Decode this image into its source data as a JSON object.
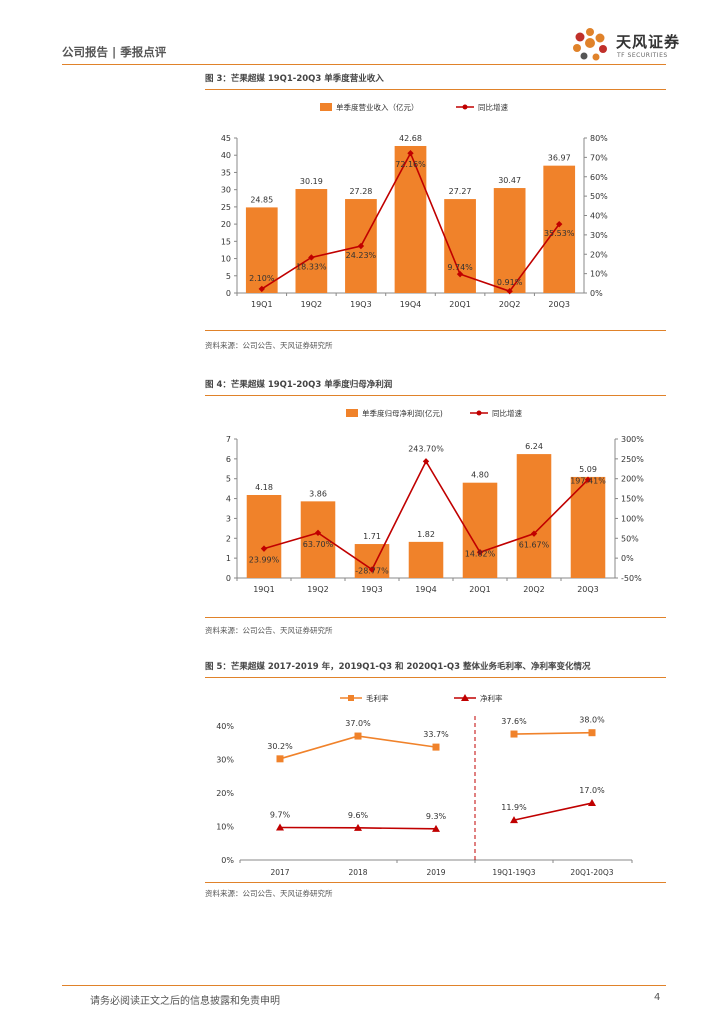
{
  "header": {
    "title": "公司报告 | 季报点评",
    "logo_cn": "天风证券",
    "logo_en": "TF SECURITIES"
  },
  "footer": {
    "disclaimer": "请务必阅读正文之后的信息披露和免责申明",
    "page": "4"
  },
  "colors": {
    "accent": "#e0822a",
    "bar": "#f0822a",
    "line": "#c00000"
  },
  "figures": [
    {
      "title": "图 3：芒果超媒 19Q1-20Q3 单季度营业收入",
      "source": "资料来源：公司公告、天风证券研究所"
    },
    {
      "title": "图 4：芒果超媒 19Q1-20Q3 单季度归母净利润",
      "source": "资料来源：公司公告、天风证券研究所"
    },
    {
      "title": "图 5：芒果超媒 2017-2019 年，2019Q1-Q3 和 2020Q1-Q3 整体业务毛利率、净利率变化情况",
      "source": "资料来源：公司公告、天风证券研究所"
    }
  ],
  "chart_data": [
    {
      "type": "bar",
      "title": "图 3：芒果超媒 19Q1-20Q3 单季度营业收入",
      "categories": [
        "19Q1",
        "19Q2",
        "19Q3",
        "19Q4",
        "20Q1",
        "20Q2",
        "20Q3"
      ],
      "series": [
        {
          "name": "单季度营业收入（亿元）",
          "kind": "bar",
          "axis": "left",
          "values": [
            24.85,
            30.19,
            27.28,
            42.68,
            27.27,
            30.47,
            36.97
          ],
          "labels": [
            "24.85",
            "30.19",
            "27.28",
            "42.68",
            "27.27",
            "30.47",
            "36.97"
          ]
        },
        {
          "name": "同比增速",
          "kind": "line",
          "axis": "right",
          "values": [
            2.1,
            18.33,
            24.23,
            72.16,
            9.74,
            0.91,
            35.53
          ],
          "labels": [
            "2.10%",
            "18.33%",
            "24.23%",
            "72.16%",
            "9.74%",
            "0.91%",
            "35.53%"
          ]
        }
      ],
      "ylim": [
        0,
        45
      ],
      "yticks": [
        "0",
        "5",
        "10",
        "15",
        "20",
        "25",
        "30",
        "35",
        "40",
        "45"
      ],
      "y2lim": [
        0,
        80
      ],
      "y2ticks": [
        "0%",
        "10%",
        "20%",
        "30%",
        "40%",
        "50%",
        "60%",
        "70%",
        "80%"
      ],
      "legend": "top-center"
    },
    {
      "type": "bar",
      "title": "图 4：芒果超媒 19Q1-20Q3 单季度归母净利润",
      "categories": [
        "19Q1",
        "19Q2",
        "19Q3",
        "19Q4",
        "20Q1",
        "20Q2",
        "20Q3"
      ],
      "series": [
        {
          "name": "单季度归母净利润(亿元)",
          "kind": "bar",
          "axis": "left",
          "values": [
            4.18,
            3.86,
            1.71,
            1.82,
            4.8,
            6.24,
            5.09
          ],
          "labels": [
            "4.18",
            "3.86",
            "1.71",
            "1.82",
            "4.80",
            "6.24",
            "5.09"
          ]
        },
        {
          "name": "同比增速",
          "kind": "line",
          "axis": "right",
          "values": [
            23.99,
            63.7,
            -28.77,
            243.7,
            14.82,
            61.67,
            197.41
          ],
          "labels": [
            "23.99%",
            "63.70%",
            "-28.77%",
            "243.70%",
            "14.82%",
            "61.67%",
            "197.41%"
          ]
        }
      ],
      "ylim": [
        0,
        7
      ],
      "yticks": [
        "0",
        "1",
        "2",
        "3",
        "4",
        "5",
        "6",
        "7"
      ],
      "y2lim": [
        -50,
        300
      ],
      "y2ticks": [
        "-50%",
        "0%",
        "50%",
        "100%",
        "150%",
        "200%",
        "250%",
        "300%"
      ],
      "legend": "top-center"
    },
    {
      "type": "line",
      "title": "图 5：芒果超媒 2017-2019 年，2019Q1-Q3 和 2020Q1-Q3 整体业务毛利率、净利率变化情况",
      "categories": [
        "2017",
        "2018",
        "2019",
        "19Q1-19Q3",
        "20Q1-20Q3"
      ],
      "groups": [
        [
          0,
          1,
          2
        ],
        [
          3,
          4
        ]
      ],
      "series": [
        {
          "name": "毛利率",
          "values": [
            30.2,
            37.0,
            33.7,
            37.6,
            38.0
          ],
          "labels": [
            "30.2%",
            "37.0%",
            "33.7%",
            "37.6%",
            "38.0%"
          ]
        },
        {
          "name": "净利率",
          "values": [
            9.7,
            9.6,
            9.3,
            11.9,
            17.0
          ],
          "labels": [
            "9.7%",
            "9.6%",
            "9.3%",
            "11.9%",
            "17.0%"
          ]
        }
      ],
      "ylim": [
        0,
        40
      ],
      "yticks": [
        "0%",
        "10%",
        "20%",
        "30%",
        "40%"
      ],
      "legend": "top-center"
    }
  ]
}
